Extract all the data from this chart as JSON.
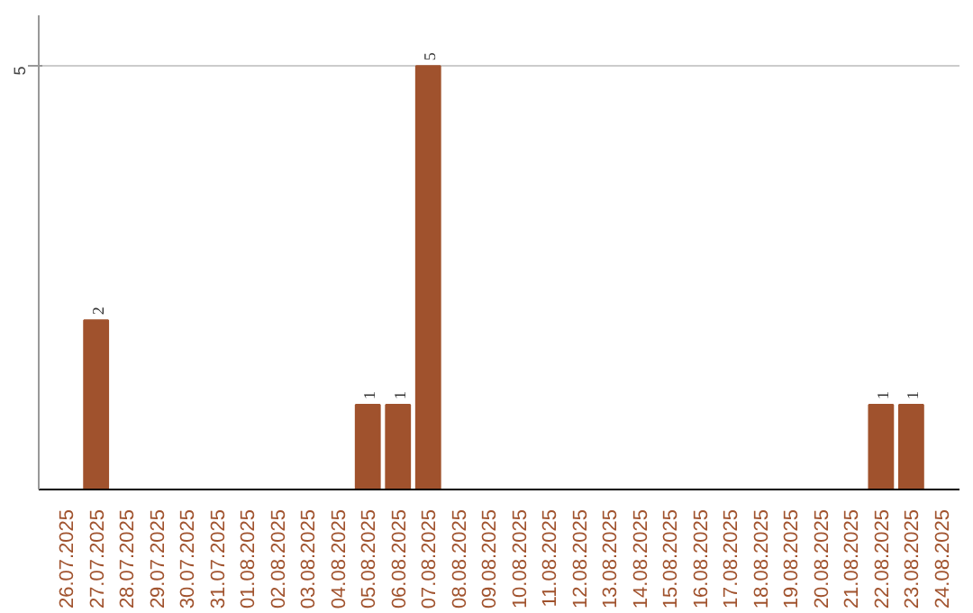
{
  "chart_data": {
    "type": "bar",
    "categories": [
      "26.07.2025",
      "27.07.2025",
      "28.07.2025",
      "29.07.2025",
      "30.07.2025",
      "31.07.2025",
      "01.08.2025",
      "02.08.2025",
      "03.08.2025",
      "04.08.2025",
      "05.08.2025",
      "06.08.2025",
      "07.08.2025",
      "08.08.2025",
      "09.08.2025",
      "10.08.2025",
      "11.08.2025",
      "12.08.2025",
      "13.08.2025",
      "14.08.2025",
      "15.08.2025",
      "16.08.2025",
      "17.08.2025",
      "18.08.2025",
      "19.08.2025",
      "20.08.2025",
      "21.08.2025",
      "22.08.2025",
      "23.08.2025",
      "24.08.2025"
    ],
    "values": [
      0,
      2,
      0,
      0,
      0,
      0,
      0,
      0,
      0,
      0,
      1,
      1,
      5,
      0,
      0,
      0,
      0,
      0,
      0,
      0,
      0,
      0,
      0,
      0,
      0,
      0,
      0,
      1,
      1,
      0
    ],
    "value_labels": [
      null,
      "2",
      null,
      null,
      null,
      null,
      null,
      null,
      null,
      null,
      "1",
      "1",
      "5",
      null,
      null,
      null,
      null,
      null,
      null,
      null,
      null,
      null,
      null,
      null,
      null,
      null,
      null,
      "1",
      "1",
      null
    ],
    "color": "#a0522d",
    "ylim": [
      0,
      5.6
    ],
    "yticks": [
      5
    ],
    "grid": "y"
  }
}
